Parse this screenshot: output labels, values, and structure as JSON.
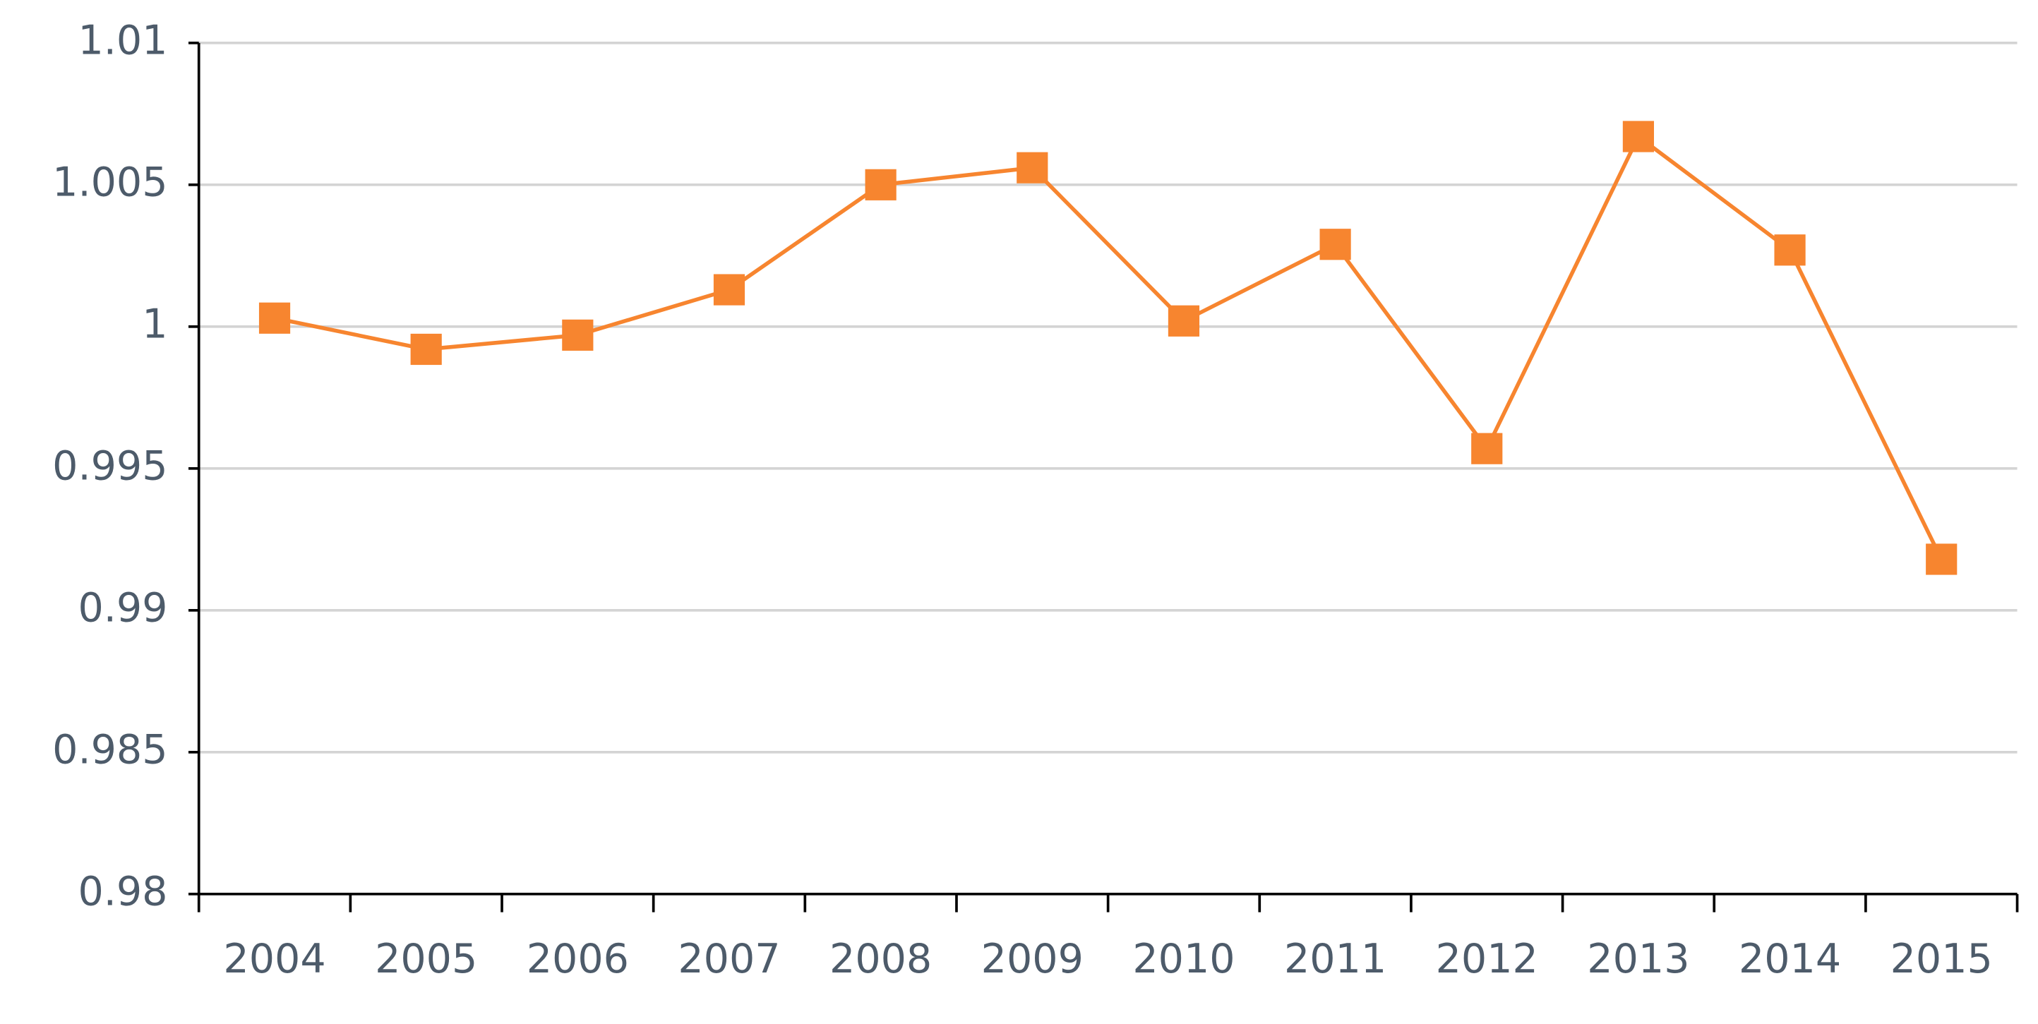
{
  "chart_data": {
    "type": "line",
    "categories": [
      "2004",
      "2005",
      "2006",
      "2007",
      "2008",
      "2009",
      "2010",
      "2011",
      "2012",
      "2013",
      "2014",
      "2015"
    ],
    "values": [
      1.0003,
      0.9992,
      0.9997,
      1.0013,
      1.005,
      1.0056,
      1.0002,
      1.0029,
      0.9957,
      1.0067,
      1.0027,
      0.9918
    ],
    "color": "#f7852f",
    "ylim": [
      0.98,
      1.01
    ],
    "yticks": [
      0.98,
      0.985,
      0.99,
      0.995,
      1,
      1.005,
      1.01
    ],
    "grid": true
  }
}
